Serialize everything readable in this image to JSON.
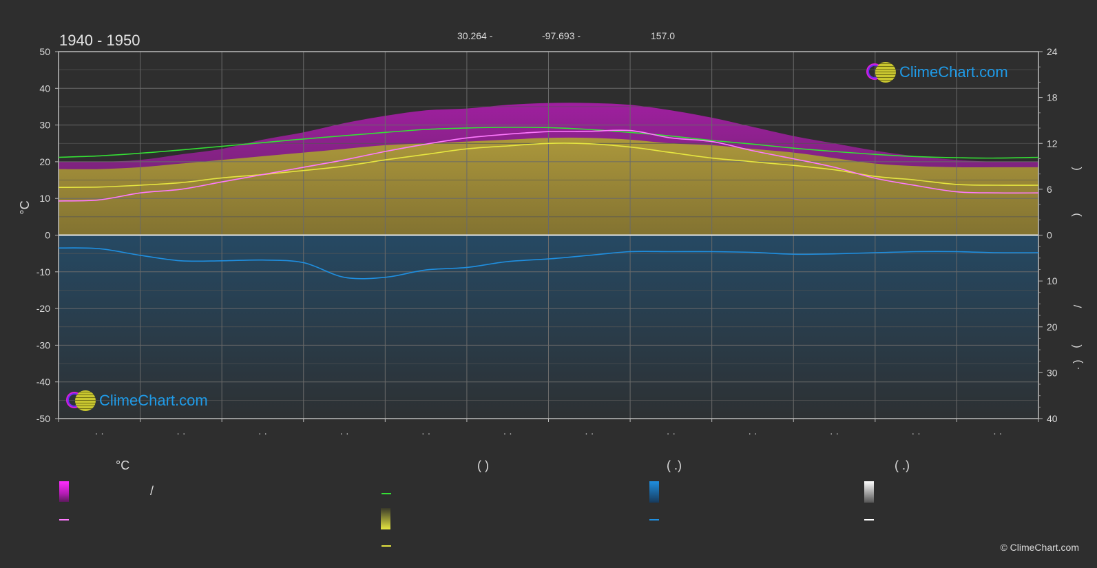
{
  "header": {
    "title": "1940 - 1950",
    "latitude": "30.264 -",
    "longitude": "-97.693 -",
    "elevation": "157.0"
  },
  "brand": {
    "logo_text": "ClimeChart.com",
    "copyright": "© ClimeChart.com"
  },
  "colors": {
    "background": "#2e2e2e",
    "temp_band": "#d91ed9",
    "temp_mean": "#ff7aff",
    "daylight": "#35e035",
    "sunshine": "#e6e640",
    "sunshine_band": "#a6a32a",
    "precip": "#1f8fe0",
    "snow": "#ffffff",
    "logo_text": "#1f9be8"
  },
  "chart_data": {
    "type": "line",
    "months": [
      "· ·",
      "· ·",
      "· ·",
      "· ·",
      "· ·",
      "· ·",
      "· ·",
      "· ·",
      "· ·",
      "· ·",
      "· ·",
      "· ·"
    ],
    "y_left": {
      "label": "°C",
      "ylim": [
        -50,
        50
      ],
      "ticks": [
        50,
        40,
        30,
        20,
        10,
        0,
        -10,
        -20,
        -30,
        -40,
        -50
      ]
    },
    "y_right_top": {
      "ylim": [
        0,
        24
      ],
      "ticks": [
        24,
        18,
        12,
        6,
        0
      ]
    },
    "y_right_bottom": {
      "ylim": [
        0,
        40
      ],
      "ticks": [
        10,
        20,
        30,
        40
      ]
    },
    "right_axis_marks": [
      ")",
      "(",
      "/",
      ")",
      "( ·"
    ],
    "grid": true,
    "x": [
      0,
      0.5,
      1,
      1.5,
      2,
      2.5,
      3,
      3.5,
      4,
      4.5,
      5,
      5.5,
      6,
      6.5,
      7,
      7.5,
      8,
      8.5,
      9,
      9.5,
      10,
      10.5,
      11,
      11.5,
      12
    ],
    "series": [
      {
        "key": "daylight",
        "values": [
          21.2,
          21.6,
          22.3,
          23.2,
          24.2,
          25.2,
          26.2,
          27.1,
          28.0,
          28.8,
          29.2,
          29.4,
          29.3,
          28.8,
          28.0,
          27.0,
          25.8,
          24.8,
          23.7,
          22.8,
          22.0,
          21.4,
          21.1,
          21.0,
          21.2
        ]
      },
      {
        "key": "sunshine",
        "values": [
          13.0,
          13.1,
          13.6,
          14.3,
          15.6,
          16.5,
          17.6,
          18.8,
          20.5,
          22.0,
          23.5,
          24.3,
          25.0,
          24.9,
          24.0,
          22.5,
          21.0,
          20.0,
          19.0,
          17.8,
          16.0,
          15.0,
          13.8,
          13.6,
          13.6
        ]
      },
      {
        "key": "temp_mean",
        "values": [
          9.3,
          9.6,
          11.5,
          12.5,
          14.5,
          16.5,
          18.5,
          20.5,
          22.8,
          24.8,
          26.5,
          27.5,
          28.2,
          28.3,
          28.5,
          26.5,
          25.5,
          23.0,
          20.8,
          18.5,
          15.5,
          13.5,
          11.8,
          11.5,
          11.5
        ]
      },
      {
        "key": "temp_max_band",
        "values": [
          20.0,
          20.0,
          20.5,
          22.0,
          23.5,
          26.0,
          28.0,
          30.5,
          32.5,
          34.0,
          34.5,
          35.5,
          36.0,
          36.0,
          35.5,
          34.0,
          32.0,
          29.5,
          27.0,
          25.0,
          23.0,
          21.5,
          20.5,
          20.0,
          20.0
        ]
      },
      {
        "key": "sunshine_band",
        "values": [
          18.0,
          18.0,
          18.5,
          19.5,
          20.5,
          21.5,
          22.5,
          23.5,
          24.5,
          25.0,
          25.5,
          26.0,
          26.5,
          26.5,
          26.0,
          25.0,
          24.5,
          23.5,
          22.5,
          21.0,
          19.5,
          18.8,
          18.5,
          18.5,
          18.5
        ]
      },
      {
        "key": "precipitation",
        "values": [
          -3.5,
          -3.7,
          -5.5,
          -7.0,
          -7.0,
          -6.8,
          -7.5,
          -11.5,
          -11.5,
          -9.5,
          -8.8,
          -7.2,
          -6.5,
          -5.5,
          -4.5,
          -4.5,
          -4.5,
          -4.7,
          -5.2,
          -5.1,
          -4.8,
          -4.5,
          -4.5,
          -4.8,
          -4.8
        ]
      }
    ]
  },
  "legend": {
    "col1_head": "°C",
    "col1_slash": "/",
    "col2_head": "(         )",
    "col3_head": "(   .)",
    "col4_head": "(   .)"
  }
}
